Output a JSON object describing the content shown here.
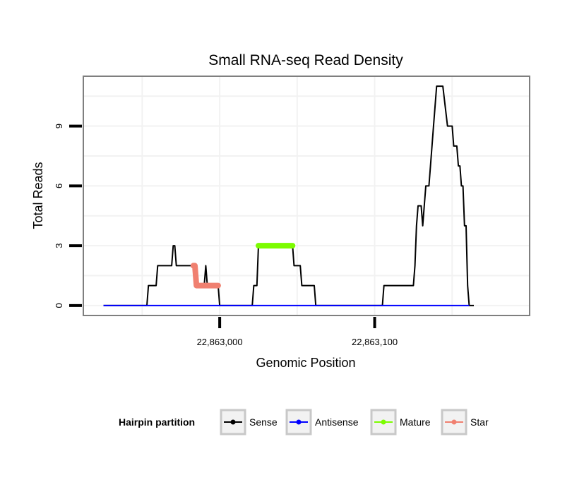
{
  "chart_data": {
    "type": "line",
    "title": "Small RNA-seq Read Density",
    "xlabel": "Genomic Position",
    "ylabel": "Total Reads",
    "xlim": [
      22862912,
      22863200
    ],
    "ylim": [
      -0.5,
      11.5
    ],
    "x_ticks": [
      22863000,
      22863100
    ],
    "x_tick_labels": [
      "22,863,000",
      "22,863,100"
    ],
    "y_ticks": [
      0,
      3,
      6,
      9
    ],
    "y_tick_labels": [
      "0",
      "3",
      "6",
      "9"
    ],
    "grid": true,
    "legend": {
      "title": "Hairpin partition",
      "position": "bottom",
      "entries": [
        {
          "label": "Sense",
          "color": "#000000"
        },
        {
          "label": "Antisense",
          "color": "#0000ff"
        },
        {
          "label": "Mature",
          "color": "#7cfc00"
        },
        {
          "label": "Star",
          "color": "#f08070"
        }
      ]
    },
    "series": [
      {
        "name": "Sense",
        "color": "#000000",
        "points": [
          [
            22862925,
            0
          ],
          [
            22862953,
            0
          ],
          [
            22862954,
            1
          ],
          [
            22862959,
            1
          ],
          [
            22862960,
            2
          ],
          [
            22862969,
            2
          ],
          [
            22862970,
            3
          ],
          [
            22862971,
            3
          ],
          [
            22862972,
            2
          ],
          [
            22862985,
            2
          ],
          [
            22862986,
            1
          ],
          [
            22862990,
            1
          ],
          [
            22862991,
            2
          ],
          [
            22862992,
            1
          ],
          [
            22862999,
            1
          ],
          [
            22863000,
            0
          ],
          [
            22863021,
            0
          ],
          [
            22863022,
            1
          ],
          [
            22863024,
            1
          ],
          [
            22863025,
            3
          ],
          [
            22863047,
            3
          ],
          [
            22863048,
            2
          ],
          [
            22863052,
            2
          ],
          [
            22863053,
            1
          ],
          [
            22863061,
            1
          ],
          [
            22863062,
            0
          ],
          [
            22863105,
            0
          ],
          [
            22863106,
            1
          ],
          [
            22863125,
            1
          ],
          [
            22863126,
            2
          ],
          [
            22863127,
            4
          ],
          [
            22863128,
            5
          ],
          [
            22863130,
            5
          ],
          [
            22863131,
            4
          ],
          [
            22863132,
            5
          ],
          [
            22863133,
            6
          ],
          [
            22863135,
            6
          ],
          [
            22863136,
            7
          ],
          [
            22863138,
            9
          ],
          [
            22863140,
            11
          ],
          [
            22863144,
            11
          ],
          [
            22863147,
            9
          ],
          [
            22863150,
            9
          ],
          [
            22863151,
            8
          ],
          [
            22863153,
            8
          ],
          [
            22863154,
            7
          ],
          [
            22863155,
            7
          ],
          [
            22863156,
            6
          ],
          [
            22863157,
            6
          ],
          [
            22863158,
            4
          ],
          [
            22863159,
            4
          ],
          [
            22863160,
            1
          ],
          [
            22863161,
            0
          ],
          [
            22863164,
            0
          ]
        ]
      },
      {
        "name": "Antisense",
        "color": "#0000ff",
        "points": [
          [
            22862925,
            0
          ],
          [
            22863161,
            0
          ]
        ]
      },
      {
        "name": "Mature",
        "color": "#7cfc00",
        "points": [
          [
            22863025,
            3
          ],
          [
            22863047,
            3
          ]
        ]
      },
      {
        "name": "Star",
        "color": "#f08070",
        "points": [
          [
            22862983,
            2
          ],
          [
            22862984,
            2
          ],
          [
            22862985,
            1
          ],
          [
            22862999,
            1
          ]
        ]
      }
    ]
  }
}
